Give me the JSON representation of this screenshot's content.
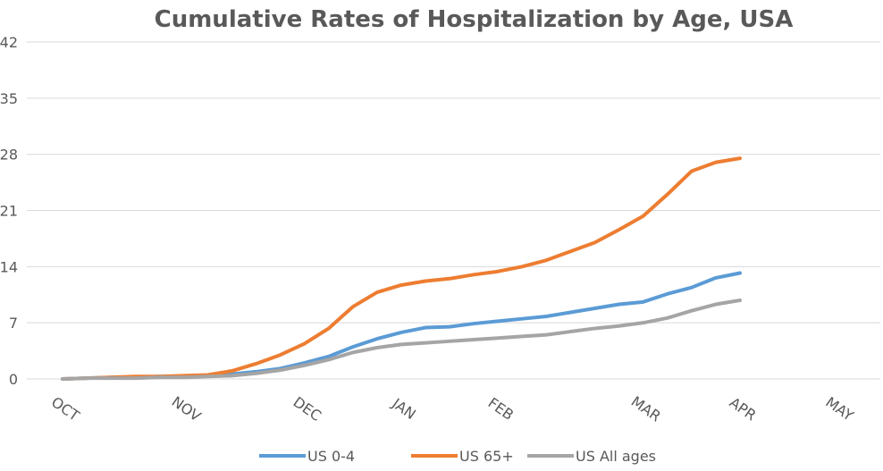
{
  "chart_data": {
    "type": "line",
    "title": "Cumulative Rates of Hospitalization by Age, USA",
    "categories": [
      "OCT",
      null,
      null,
      null,
      null,
      "NOV",
      null,
      null,
      null,
      null,
      "DEC",
      null,
      null,
      null,
      "JAN",
      null,
      null,
      null,
      "FEB",
      null,
      null,
      null,
      null,
      null,
      "MAR",
      null,
      null,
      null,
      "APR",
      null,
      null,
      null,
      "MAY"
    ],
    "series": [
      {
        "name": "US 0-4",
        "color": "#5b9bd5",
        "values": [
          0,
          0.1,
          0.2,
          0.2,
          0.3,
          0.3,
          0.4,
          0.6,
          0.9,
          1.3,
          2.0,
          2.8,
          4.0,
          5.0,
          5.8,
          6.4,
          6.5,
          6.9,
          7.2,
          7.5,
          7.8,
          8.3,
          8.8,
          9.3,
          9.6,
          10.6,
          11.4,
          12.6,
          13.2,
          null,
          null,
          null,
          null
        ]
      },
      {
        "name": "US 65+",
        "color": "#ed7d31",
        "values": [
          0,
          0.1,
          0.2,
          0.3,
          0.3,
          0.4,
          0.5,
          1.0,
          1.9,
          3.0,
          4.4,
          6.3,
          9.0,
          10.8,
          11.7,
          12.2,
          12.5,
          13.0,
          13.4,
          14.0,
          14.8,
          15.9,
          17.0,
          18.6,
          20.3,
          23.0,
          25.9,
          27.0,
          27.5,
          null,
          null,
          null,
          null
        ]
      },
      {
        "name": "US All ages",
        "color": "#a5a5a5",
        "values": [
          0,
          0.1,
          0.1,
          0.1,
          0.2,
          0.2,
          0.3,
          0.4,
          0.7,
          1.1,
          1.7,
          2.4,
          3.3,
          3.9,
          4.3,
          4.5,
          4.7,
          4.9,
          5.1,
          5.3,
          5.5,
          5.9,
          6.3,
          6.6,
          7.0,
          7.6,
          8.5,
          9.3,
          9.8,
          null,
          null,
          null,
          null
        ]
      }
    ],
    "ylim": [
      0,
      42
    ],
    "yticks": [
      0,
      7,
      14,
      21,
      28,
      35,
      42
    ],
    "grid": true,
    "legend": "bottom"
  }
}
